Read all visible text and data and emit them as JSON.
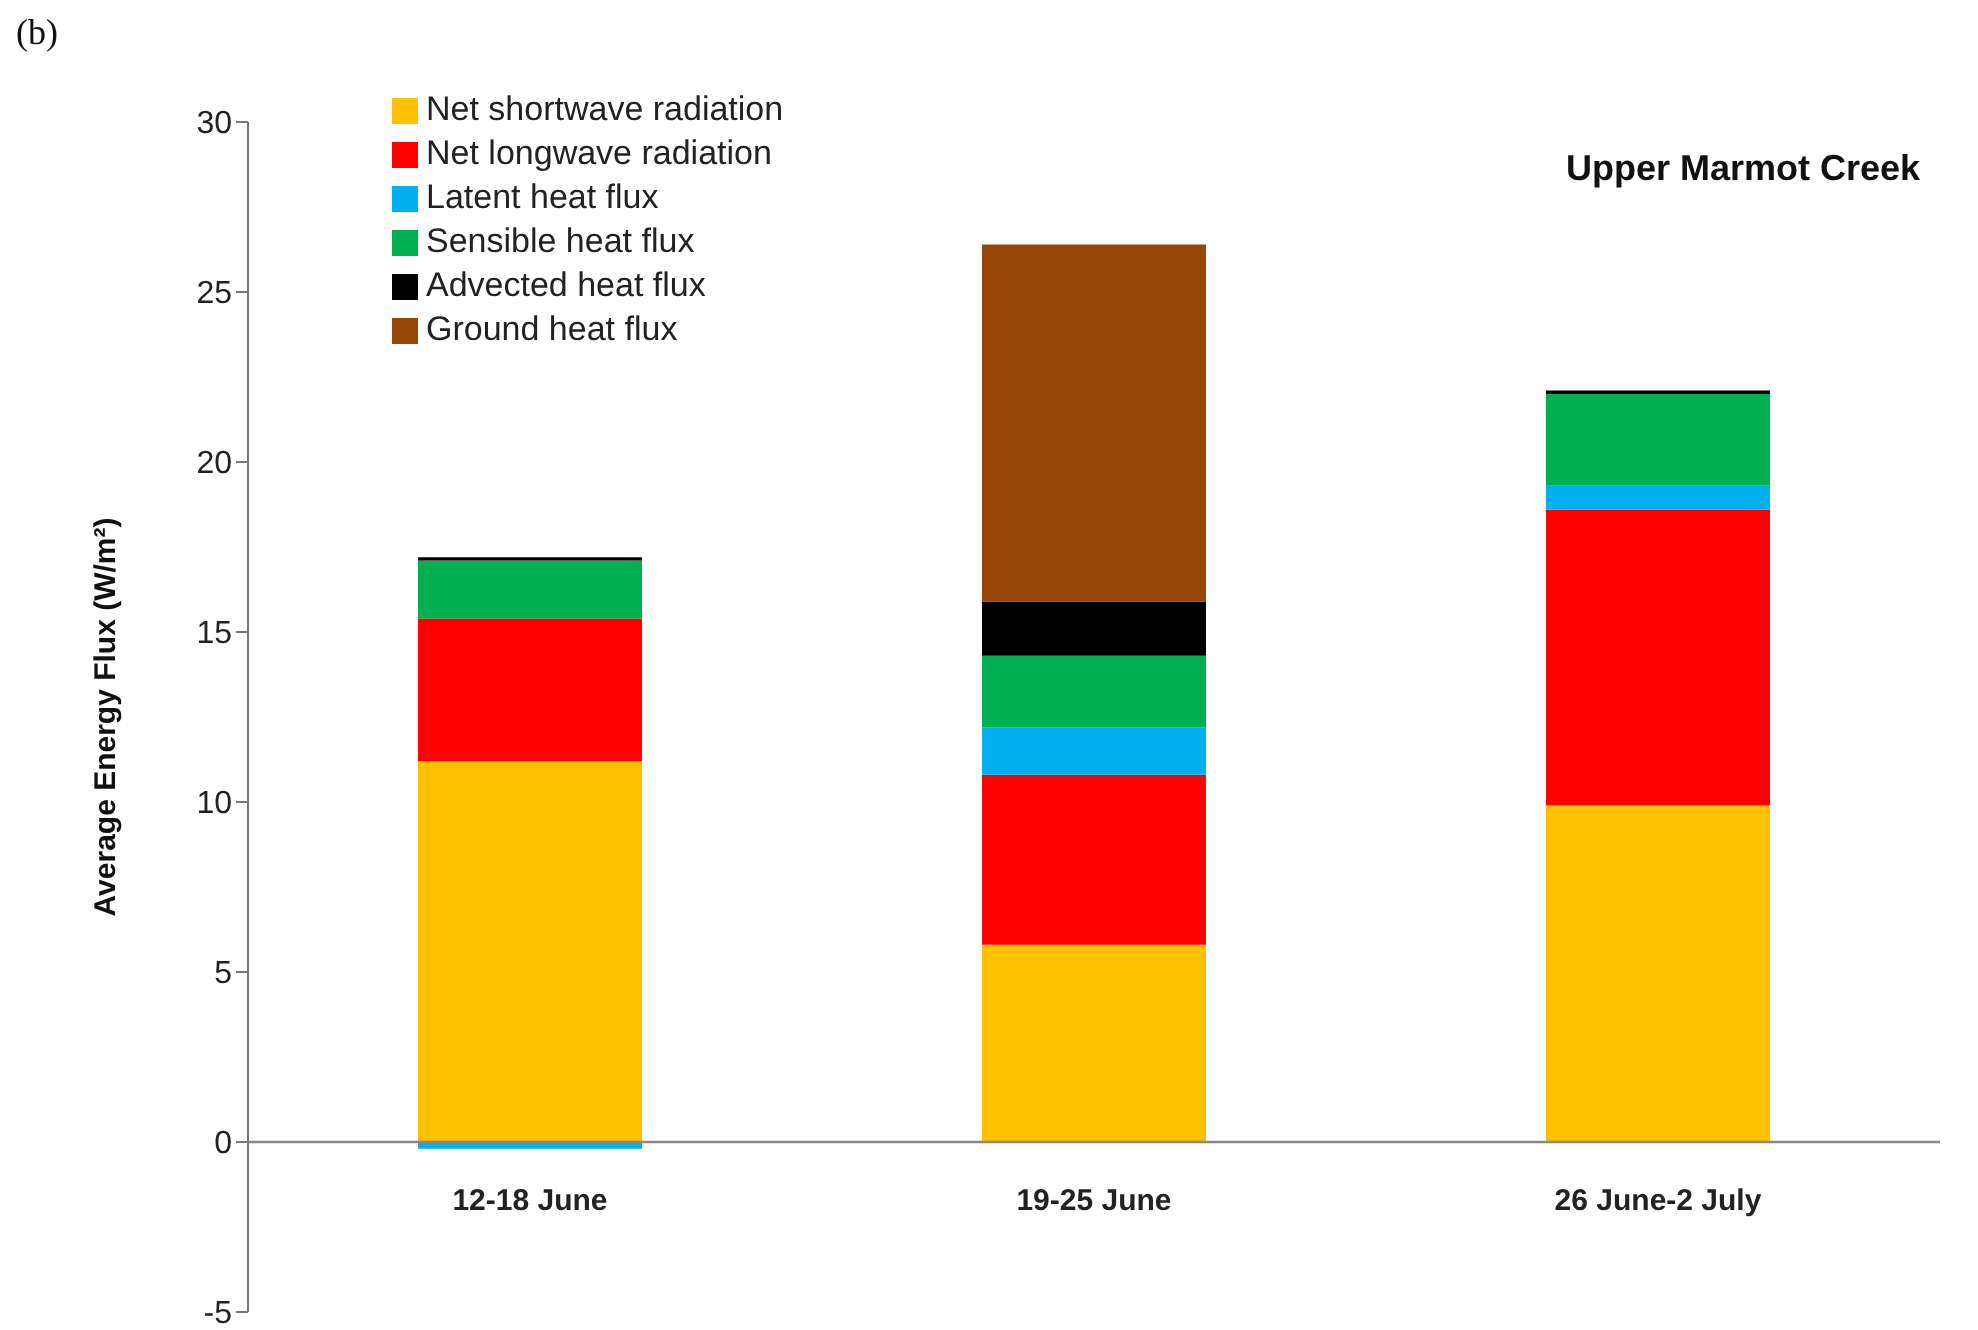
{
  "chart_data": {
    "type": "bar",
    "stacked": true,
    "title": "Upper Marmot Creek",
    "ylabel": "Average Energy Flux (W/m²)",
    "annotations": [
      "(b)"
    ],
    "categories": [
      "12-18 June",
      "19-25 June",
      "26 June-2 July"
    ],
    "series": [
      {
        "name": "Net shortwave radiation",
        "color": "#ffc000",
        "values": [
          11.2,
          5.8,
          9.9
        ]
      },
      {
        "name": "Net longwave radiation",
        "color": "#ff0000",
        "values": [
          4.2,
          5.0,
          8.7
        ]
      },
      {
        "name": "Latent heat flux",
        "color": "#00b0f0",
        "values": [
          -0.2,
          1.4,
          0.7
        ]
      },
      {
        "name": "Sensible heat flux",
        "color": "#00b050",
        "values": [
          1.7,
          2.1,
          2.7
        ]
      },
      {
        "name": "Advected heat flux",
        "color": "#000000",
        "values": [
          0.1,
          1.6,
          0.1
        ]
      },
      {
        "name": "Ground heat flux",
        "color": "#974706",
        "values": [
          0,
          10.5,
          0
        ]
      }
    ],
    "ylim": [
      -5,
      30
    ],
    "yticks": [
      -5,
      0,
      5,
      10,
      15,
      20,
      25,
      30
    ],
    "grid": false,
    "legend": "top left"
  }
}
